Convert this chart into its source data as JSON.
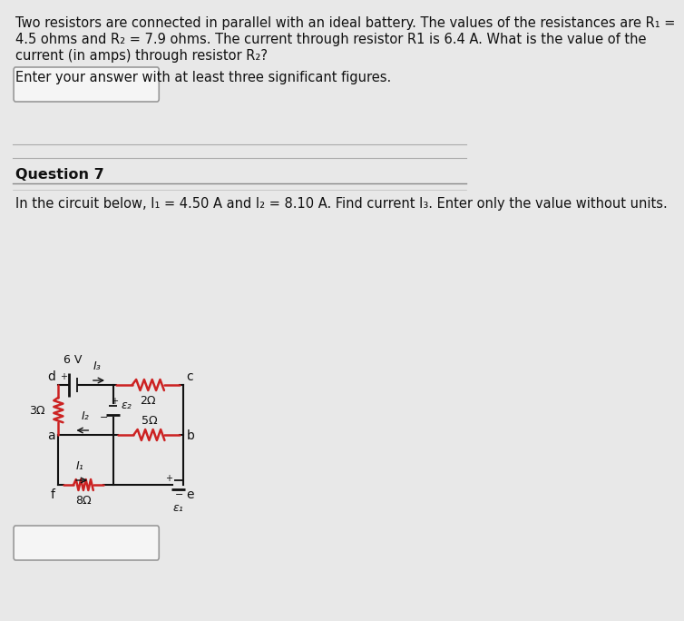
{
  "bg_color": "#e8e8e8",
  "bg_color_upper": "#e0e0e0",
  "text_color": "#111111",
  "circuit_color_wire": "#111111",
  "circuit_color_resistor": "#cc2222",
  "q6_lines": [
    "Two resistors are connected in parallel with an ideal battery. The values of the resistances are R₁ =",
    "4.5 ohms and R₂ = 7.9 ohms. The current through resistor R1 is 6.4 A. What is the value of the",
    "current (in amps) through resistor R₂?"
  ],
  "q6_enter": "Enter your answer with at least three significant figures.",
  "q7_label": "Question 7",
  "q7_text": "In the circuit below, I₁ = 4.50 A and I₂ = 8.10 A. Find current I₃. Enter only the value without units.",
  "font_size_main": 10.5,
  "font_size_q7label": 11.5,
  "font_size_circuit": 9,
  "circuit_lw": 1.5,
  "resistor_lw": 1.8
}
